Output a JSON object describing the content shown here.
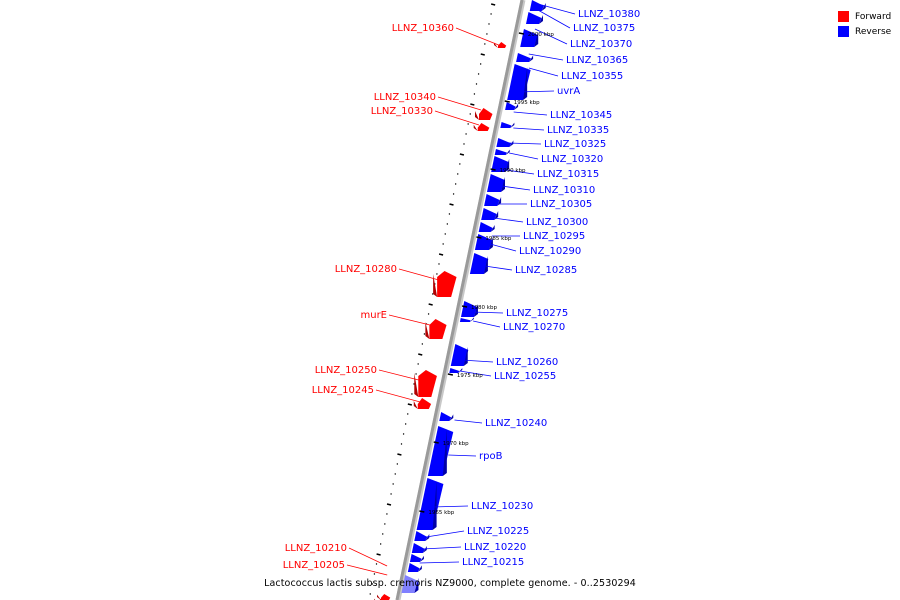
{
  "legend": [
    {
      "label": "Forward",
      "color": "#ff0000"
    },
    {
      "label": "Reverse",
      "color": "#0000ff"
    }
  ],
  "caption": "Lactococcus lactis subsp. cremoris NZ9000, complete genome. - 0..2530294",
  "colors": {
    "forward": "#ff0000",
    "reverse": "#0000ff",
    "highlight": "#8080ff",
    "axis": "#9a9a9a"
  },
  "scale_labels": [
    "2000 kbp",
    "1995 kbp",
    "1990 kbp",
    "1985 kbp",
    "1980 kbp",
    "1975 kbp",
    "1970 kbp",
    "1965 kbp"
  ],
  "forward_genes": [
    "LLNZ_10360",
    "LLNZ_10340",
    "LLNZ_10330",
    "LLNZ_10280",
    "murE",
    "LLNZ_10250",
    "LLNZ_10245",
    "LLNZ_10210",
    "LLNZ_10205"
  ],
  "reverse_genes": [
    "LLNZ_10380",
    "LLNZ_10375",
    "LLNZ_10370",
    "LLNZ_10365",
    "LLNZ_10355",
    "uvrA",
    "LLNZ_10345",
    "LLNZ_10335",
    "LLNZ_10325",
    "LLNZ_10320",
    "LLNZ_10315",
    "LLNZ_10310",
    "LLNZ_10305",
    "LLNZ_10300",
    "LLNZ_10295",
    "LLNZ_10290",
    "LLNZ_10285",
    "LLNZ_10275",
    "LLNZ_10270",
    "LLNZ_10260",
    "LLNZ_10255",
    "LLNZ_10240",
    "rpoB",
    "LLNZ_10230",
    "LLNZ_10225",
    "LLNZ_10220",
    "LLNZ_10215"
  ]
}
